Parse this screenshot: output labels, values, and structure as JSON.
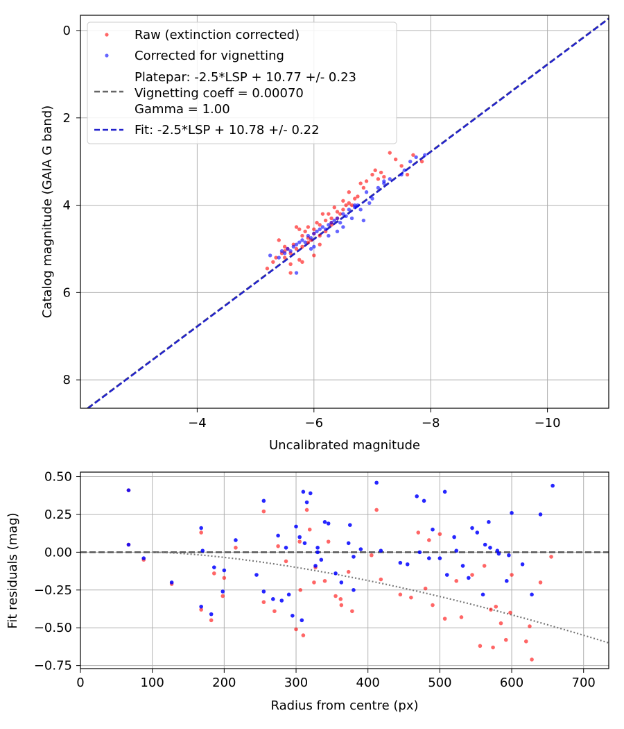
{
  "chart_data": [
    {
      "type": "scatter",
      "xlabel": "Uncalibrated magnitude",
      "ylabel": "Catalog magnitude (GAIA G band)",
      "xlim": [
        -2.0,
        -11.05
      ],
      "ylim": [
        8.65,
        -0.35
      ],
      "x_ticks": [
        -4,
        -6,
        -8,
        -10
      ],
      "x_tick_labels": [
        "−4",
        "−6",
        "−8",
        "−10"
      ],
      "y_ticks": [
        0,
        2,
        4,
        6,
        8
      ],
      "y_tick_labels": [
        "0",
        "2",
        "4",
        "6",
        "8"
      ],
      "grid": true,
      "legend": {
        "location": "upper-left",
        "raw_label": "Raw (extinction corrected)",
        "corrected_label": "Corrected for vignetting",
        "platepar_lines": [
          "Platepar: -2.5*LSP + 10.77 +/- 0.23",
          "Vignetting coeff = 0.00070",
          "Gamma = 1.00"
        ],
        "fit_label": "Fit: -2.5*LSP + 10.78 +/- 0.22"
      },
      "colors": {
        "raw": "#ff0000",
        "corrected": "#0000ff",
        "platepar": "#666666",
        "fit": "#2222cc"
      },
      "lines": {
        "platepar": {
          "slope": -2.5,
          "intercept": 10.77
        },
        "fit": {
          "slope": -2.5,
          "intercept": 10.78
        }
      },
      "series": [
        {
          "name": "Raw (extinction corrected)",
          "x": [
            -5.2,
            -5.3,
            -5.35,
            -5.4,
            -5.45,
            -5.5,
            -5.5,
            -5.55,
            -5.6,
            -5.6,
            -5.65,
            -5.7,
            -5.7,
            -5.75,
            -5.8,
            -5.8,
            -5.85,
            -5.9,
            -5.9,
            -5.95,
            -6.0,
            -6.0,
            -6.05,
            -6.1,
            -6.1,
            -6.15,
            -6.2,
            -6.2,
            -6.25,
            -6.3,
            -6.3,
            -6.35,
            -6.4,
            -6.45,
            -6.5,
            -6.5,
            -6.55,
            -6.6,
            -6.65,
            -6.7,
            -6.75,
            -6.8,
            -6.85,
            -6.9,
            -7.0,
            -7.05,
            -7.1,
            -7.15,
            -7.2,
            -7.3,
            -7.4,
            -7.5,
            -7.6,
            -7.7,
            -7.85,
            -5.6,
            -5.75,
            -5.9,
            -6.1,
            -6.4,
            -6.0,
            -5.5,
            -5.8,
            -6.3,
            -6.6
          ],
          "y": [
            5.45,
            5.3,
            5.2,
            4.8,
            5.1,
            5.05,
            5.2,
            5.0,
            5.1,
            5.35,
            4.9,
            4.5,
            5.0,
            4.55,
            4.7,
            4.95,
            4.6,
            4.5,
            4.75,
            4.8,
            4.55,
            4.65,
            4.4,
            4.45,
            4.9,
            4.2,
            4.35,
            4.6,
            4.2,
            4.3,
            4.4,
            4.05,
            4.15,
            4.2,
            3.9,
            4.1,
            4.0,
            3.7,
            4.0,
            3.85,
            3.8,
            3.5,
            3.6,
            3.45,
            3.3,
            3.2,
            3.4,
            3.25,
            3.35,
            2.8,
            2.95,
            3.1,
            3.3,
            2.85,
            3.0,
            5.55,
            5.25,
            4.85,
            4.7,
            4.3,
            5.15,
            4.95,
            5.3,
            4.45,
            3.95
          ]
        },
        {
          "name": "Corrected for vignetting",
          "x": [
            -5.25,
            -5.4,
            -5.5,
            -5.55,
            -5.6,
            -5.65,
            -5.7,
            -5.75,
            -5.8,
            -5.85,
            -5.9,
            -5.95,
            -6.0,
            -6.05,
            -6.1,
            -6.15,
            -6.2,
            -6.25,
            -6.3,
            -6.35,
            -6.4,
            -6.45,
            -6.5,
            -6.55,
            -6.6,
            -6.65,
            -6.7,
            -6.75,
            -6.8,
            -6.85,
            -6.95,
            -7.0,
            -7.1,
            -7.2,
            -7.3,
            -7.5,
            -7.55,
            -7.65,
            -7.75,
            -7.9,
            -5.45,
            -5.7,
            -6.0,
            -6.25,
            -6.5,
            -6.7,
            -6.9,
            -7.2,
            -6.4,
            -5.95
          ],
          "y": [
            5.15,
            5.2,
            5.1,
            5.0,
            5.05,
            4.95,
            4.9,
            4.85,
            4.8,
            4.85,
            4.7,
            4.75,
            4.65,
            4.6,
            4.55,
            4.5,
            4.55,
            4.45,
            4.4,
            4.35,
            4.3,
            4.4,
            4.2,
            4.25,
            4.1,
            4.3,
            4.05,
            4.0,
            4.1,
            4.35,
            3.95,
            3.85,
            3.6,
            3.5,
            3.4,
            3.3,
            3.2,
            3.0,
            2.9,
            2.85,
            5.05,
            5.55,
            4.95,
            4.7,
            4.5,
            4.0,
            3.7,
            3.45,
            4.6,
            5.0
          ]
        }
      ]
    },
    {
      "type": "scatter",
      "xlabel": "Radius from centre (px)",
      "ylabel": "Fit residuals (mag)",
      "xlim": [
        0,
        735
      ],
      "ylim": [
        -0.77,
        0.53
      ],
      "x_ticks": [
        0,
        100,
        200,
        300,
        400,
        500,
        600,
        700
      ],
      "x_tick_labels": [
        "0",
        "100",
        "200",
        "300",
        "400",
        "500",
        "600",
        "700"
      ],
      "y_ticks": [
        0.5,
        0.25,
        0.0,
        -0.25,
        -0.5,
        -0.75
      ],
      "y_tick_labels": [
        "0.50",
        "0.25",
        "0.00",
        "−0.25",
        "−0.50",
        "−0.75"
      ],
      "grid": true,
      "reference_line": {
        "y": 0.0,
        "style": "dashed",
        "color": "#555555"
      },
      "vignetting_curve": {
        "coeff": 0.0007,
        "style": "dotted",
        "color": "#777777"
      },
      "series": [
        {
          "name": "Raw (extinction corrected)",
          "x": [
            67,
            67,
            88,
            127,
            168,
            168,
            182,
            186,
            198,
            200,
            216,
            255,
            255,
            270,
            275,
            286,
            300,
            305,
            306,
            310,
            315,
            319,
            325,
            327,
            340,
            345,
            355,
            362,
            363,
            373,
            378,
            405,
            412,
            418,
            445,
            460,
            470,
            480,
            485,
            490,
            500,
            507,
            523,
            530,
            545,
            556,
            562,
            571,
            574,
            578,
            585,
            592,
            598,
            600,
            620,
            625,
            628,
            640,
            655
          ],
          "y": [
            0.41,
            0.05,
            -0.05,
            -0.21,
            0.13,
            -0.38,
            -0.45,
            -0.14,
            -0.29,
            -0.17,
            0.03,
            0.27,
            -0.33,
            -0.39,
            0.04,
            -0.06,
            -0.51,
            0.07,
            -0.25,
            -0.55,
            0.28,
            0.15,
            -0.2,
            -0.1,
            -0.19,
            0.07,
            -0.29,
            -0.31,
            -0.35,
            -0.13,
            -0.39,
            -0.02,
            0.28,
            -0.18,
            -0.28,
            -0.3,
            0.13,
            -0.24,
            0.08,
            -0.35,
            0.12,
            -0.44,
            -0.19,
            -0.43,
            -0.15,
            -0.62,
            -0.09,
            -0.38,
            -0.63,
            -0.36,
            -0.47,
            -0.58,
            -0.4,
            -0.15,
            -0.59,
            -0.49,
            -0.71,
            -0.2,
            -0.03
          ]
        },
        {
          "name": "Corrected for vignetting",
          "x": [
            67,
            67,
            88,
            127,
            168,
            168,
            170,
            182,
            186,
            198,
            200,
            216,
            255,
            255,
            268,
            275,
            280,
            286,
            295,
            300,
            305,
            308,
            310,
            312,
            315,
            320,
            327,
            330,
            335,
            340,
            345,
            355,
            363,
            373,
            375,
            380,
            390,
            412,
            418,
            445,
            455,
            468,
            478,
            485,
            490,
            500,
            507,
            510,
            520,
            523,
            532,
            540,
            545,
            552,
            560,
            563,
            568,
            570,
            580,
            582,
            593,
            596,
            600,
            615,
            628,
            640,
            657,
            380,
            290,
            472,
            330,
            245
          ],
          "y": [
            0.41,
            0.05,
            -0.04,
            -0.2,
            0.16,
            -0.36,
            0.01,
            -0.41,
            -0.1,
            -0.26,
            -0.12,
            0.08,
            0.34,
            -0.26,
            -0.31,
            0.11,
            -0.32,
            0.03,
            -0.42,
            0.17,
            0.1,
            -0.45,
            0.4,
            0.06,
            0.33,
            0.39,
            -0.09,
            0.0,
            -0.05,
            0.2,
            0.19,
            -0.14,
            -0.2,
            0.06,
            0.18,
            -0.25,
            0.02,
            0.46,
            0.01,
            -0.07,
            -0.08,
            0.37,
            0.34,
            -0.04,
            0.15,
            -0.04,
            0.4,
            -0.15,
            0.1,
            0.01,
            -0.09,
            -0.17,
            0.16,
            0.13,
            -0.28,
            0.05,
            0.2,
            0.03,
            0.01,
            -0.01,
            -0.19,
            -0.02,
            0.26,
            -0.08,
            -0.28,
            0.25,
            0.44,
            -0.03,
            -0.28,
            0.0,
            0.03,
            -0.15
          ]
        }
      ]
    }
  ]
}
